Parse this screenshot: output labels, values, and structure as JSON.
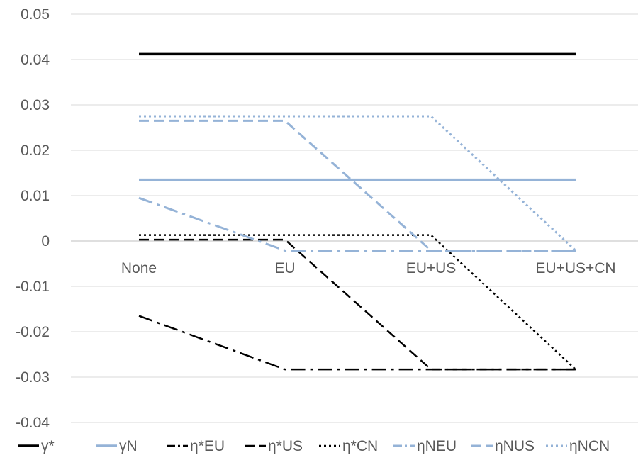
{
  "chart_data": {
    "type": "line",
    "title": "",
    "xlabel": "",
    "ylabel": "",
    "categories": [
      "None",
      "EU",
      "EU+US",
      "EU+US+CN"
    ],
    "ylim": [
      -0.04,
      0.05
    ],
    "yticks": [
      0.05,
      0.04,
      0.03,
      0.02,
      0.01,
      0,
      -0.01,
      -0.02,
      -0.03,
      -0.04
    ],
    "grid": "horizontal",
    "legend_position": "bottom",
    "series": [
      {
        "name": "γ*",
        "values": [
          0.0412,
          0.0412,
          0.0412,
          0.0412
        ],
        "color": "#000000",
        "dash": "solid",
        "width": 3.5
      },
      {
        "name": "γN",
        "values": [
          0.0135,
          0.0135,
          0.0135,
          0.0135
        ],
        "color": "#95B3D7",
        "dash": "solid",
        "width": 3.5
      },
      {
        "name": "η*EU",
        "values": [
          -0.0165,
          -0.0283,
          -0.0283,
          -0.0283
        ],
        "color": "#000000",
        "dash": "longdashdot",
        "width": 2.5
      },
      {
        "name": "η*US",
        "values": [
          0.0003,
          0.0003,
          -0.0283,
          -0.0283
        ],
        "color": "#000000",
        "dash": "dash",
        "width": 2.5
      },
      {
        "name": "η*CN",
        "values": [
          0.0013,
          0.0013,
          0.0013,
          -0.0283
        ],
        "color": "#000000",
        "dash": "dot",
        "width": 2.5
      },
      {
        "name": "ηNEU",
        "values": [
          0.0095,
          -0.0021,
          -0.0021,
          -0.0021
        ],
        "color": "#95B3D7",
        "dash": "longdashdot",
        "width": 3
      },
      {
        "name": "ηNUS",
        "values": [
          0.0265,
          0.0265,
          -0.0021,
          -0.0021
        ],
        "color": "#95B3D7",
        "dash": "dash",
        "width": 3
      },
      {
        "name": "ηNCN",
        "values": [
          0.0275,
          0.0275,
          0.0275,
          -0.0021
        ],
        "color": "#95B3D7",
        "dash": "dot",
        "width": 3
      }
    ]
  }
}
